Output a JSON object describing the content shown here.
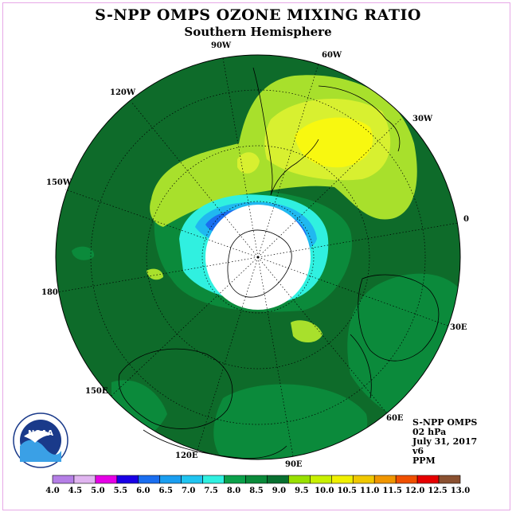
{
  "title": "S-NPP OMPS OZONE MIXING RATIO",
  "subtitle": "Southern Hemisphere",
  "meridian_labels": [
    {
      "text": "90W"
    },
    {
      "text": "60W"
    },
    {
      "text": "120W"
    },
    {
      "text": "30W"
    },
    {
      "text": "150W"
    },
    {
      "text": "0"
    },
    {
      "text": "180"
    },
    {
      "text": "30E"
    },
    {
      "text": "150E"
    },
    {
      "text": "60E"
    },
    {
      "text": "120E"
    },
    {
      "text": "90E"
    }
  ],
  "info": {
    "instrument": "S-NPP OMPS",
    "level": "02 hPa",
    "date": "July 31, 2017",
    "version": "v6",
    "units": "PPM"
  },
  "logo_text": "NOAA",
  "colorbar": {
    "ticks": [
      "4.0",
      "4.5",
      "5.0",
      "5.5",
      "6.0",
      "6.5",
      "7.0",
      "7.5",
      "8.0",
      "8.5",
      "9.0",
      "9.5",
      "10.0",
      "10.5",
      "11.0",
      "11.5",
      "12.0",
      "12.5",
      "13.0"
    ],
    "colors": [
      "#b57fe6",
      "#e0b5f0",
      "#e600e6",
      "#1a00e6",
      "#1a6ef0",
      "#1a9ef0",
      "#20c4f0",
      "#30f0e0",
      "#0ba04a",
      "#0a8a3a",
      "#087030",
      "#98e000",
      "#c8f000",
      "#f0f000",
      "#f0c800",
      "#f09600",
      "#f05000",
      "#e60000",
      "#8a5030"
    ]
  },
  "colors": {
    "ocean_base": "#0e6b2a",
    "band_dark": "#0a5f26",
    "band_mid": "#0b8a3b",
    "yellow_green": "#a8e02c",
    "light_yellow": "#d8f030",
    "yellow": "#f8f810",
    "cyan": "#30f0e0",
    "blue_light": "#20b8f0",
    "blue": "#1a6ef0"
  }
}
